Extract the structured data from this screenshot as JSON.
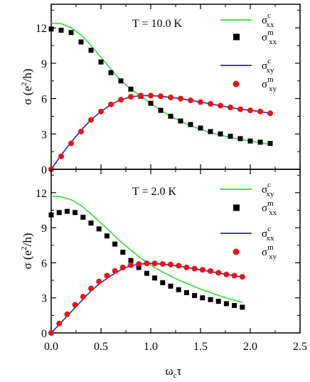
{
  "chart_data": [
    {
      "type": "line",
      "annotation": "T = 10.0 K",
      "xlabel": "",
      "ylabel": "σ (e²/h)",
      "ylabel_main": "σ (e",
      "ylabel_sup": "2",
      "ylabel_end": "/h)",
      "xlim": [
        0,
        2.5
      ],
      "ylim": [
        0,
        14
      ],
      "yticks": [
        0,
        3,
        6,
        9,
        12
      ],
      "xticks": [
        0.0,
        0.5,
        1.0,
        1.5,
        2.0,
        2.5
      ],
      "legend_position": "top-right",
      "series": [
        {
          "name": "σxx^c",
          "name_base": "σ",
          "name_sup": "c",
          "name_sub": "xx",
          "kind": "line",
          "color": "#33dd33",
          "x": [
            0.0,
            0.1,
            0.2,
            0.3,
            0.4,
            0.5,
            0.6,
            0.7,
            0.8,
            0.9,
            1.0,
            1.1,
            1.2,
            1.3,
            1.4,
            1.5,
            1.6,
            1.7,
            1.8,
            1.9,
            2.0,
            2.1,
            2.2
          ],
          "y": [
            12.4,
            12.35,
            12.0,
            11.4,
            10.5,
            9.5,
            8.5,
            7.5,
            6.8,
            6.2,
            5.6,
            5.0,
            4.5,
            4.1,
            3.7,
            3.4,
            3.1,
            2.9,
            2.7,
            2.55,
            2.4,
            2.25,
            2.1
          ]
        },
        {
          "name": "σxx^m",
          "name_base": "σ",
          "name_sup": "m",
          "name_sub": "xx",
          "kind": "square",
          "color": "#000000",
          "x": [
            0.0,
            0.1,
            0.2,
            0.3,
            0.4,
            0.5,
            0.6,
            0.7,
            0.8,
            0.9,
            1.0,
            1.1,
            1.2,
            1.3,
            1.4,
            1.5,
            1.6,
            1.7,
            1.8,
            1.9,
            2.0,
            2.1,
            2.2
          ],
          "y": [
            11.9,
            11.8,
            11.6,
            10.8,
            10.1,
            9.1,
            8.2,
            7.5,
            6.8,
            6.2,
            5.6,
            5.0,
            4.5,
            4.1,
            3.8,
            3.5,
            3.2,
            3.0,
            2.8,
            2.6,
            2.4,
            2.3,
            2.2
          ]
        },
        {
          "name": "σxy^c",
          "name_base": "σ",
          "name_sup": "c",
          "name_sub": "xy",
          "kind": "line",
          "color": "#2222cc",
          "x": [
            0.0,
            0.1,
            0.2,
            0.3,
            0.4,
            0.5,
            0.6,
            0.7,
            0.8,
            0.9,
            1.0,
            1.1,
            1.2,
            1.3,
            1.4,
            1.5,
            1.6,
            1.7,
            1.8,
            1.9,
            2.0,
            2.1,
            2.2
          ],
          "y": [
            0.0,
            1.2,
            2.3,
            3.3,
            4.2,
            4.9,
            5.5,
            5.9,
            6.15,
            6.25,
            6.25,
            6.2,
            6.1,
            6.0,
            5.85,
            5.7,
            5.55,
            5.4,
            5.25,
            5.1,
            5.0,
            4.9,
            4.75
          ]
        },
        {
          "name": "σxy^m",
          "name_base": "σ",
          "name_sup": "m",
          "name_sub": "xy",
          "kind": "circle",
          "color": "#ee1111",
          "x": [
            0.0,
            0.1,
            0.2,
            0.3,
            0.4,
            0.5,
            0.6,
            0.7,
            0.8,
            0.9,
            1.0,
            1.1,
            1.2,
            1.3,
            1.4,
            1.5,
            1.6,
            1.7,
            1.8,
            1.9,
            2.0,
            2.1,
            2.2
          ],
          "y": [
            0.0,
            1.1,
            2.2,
            3.2,
            4.2,
            4.9,
            5.5,
            5.9,
            6.15,
            6.25,
            6.25,
            6.2,
            6.1,
            6.0,
            5.85,
            5.7,
            5.55,
            5.4,
            5.25,
            5.1,
            5.0,
            4.9,
            4.75
          ]
        }
      ]
    },
    {
      "type": "line",
      "annotation": "T = 2.0 K",
      "xlabel": "ωcτ",
      "xlabel_base": "ω",
      "xlabel_sub": "c",
      "xlabel_end": "τ",
      "ylabel": "σ (e²/h)",
      "ylabel_main": "σ (e",
      "ylabel_sup": "2",
      "ylabel_end": "/h)",
      "xlim": [
        0,
        2.5
      ],
      "ylim": [
        0,
        14
      ],
      "yticks": [
        0,
        3,
        6,
        9,
        12
      ],
      "xticks": [
        0.0,
        0.5,
        1.0,
        1.5,
        2.0,
        2.5
      ],
      "xtick_labels": [
        "0.0",
        "0.5",
        "1.0",
        "1.5",
        "2.0",
        "2.5"
      ],
      "legend_position": "top-right",
      "series": [
        {
          "name": "σxy^c",
          "name_base": "σ",
          "name_sup": "c",
          "name_sub": "xy",
          "kind": "line",
          "color": "#33dd33",
          "x": [
            0.0,
            0.1,
            0.2,
            0.3,
            0.4,
            0.5,
            0.6,
            0.7,
            0.8,
            0.9,
            1.0,
            1.1,
            1.2,
            1.3,
            1.4,
            1.5,
            1.6,
            1.7,
            1.8,
            1.9,
            1.92
          ],
          "y": [
            11.7,
            11.65,
            11.4,
            10.9,
            10.2,
            9.4,
            8.6,
            7.8,
            7.1,
            6.4,
            5.8,
            5.3,
            4.85,
            4.45,
            4.1,
            3.75,
            3.45,
            3.15,
            2.9,
            2.65,
            2.6
          ]
        },
        {
          "name": "σxx^m",
          "name_base": "σ",
          "name_sup": "m",
          "name_sub": "xx",
          "kind": "square",
          "color": "#000000",
          "x": [
            0.0,
            0.08,
            0.16,
            0.24,
            0.32,
            0.4,
            0.48,
            0.56,
            0.64,
            0.72,
            0.8,
            0.88,
            0.96,
            1.04,
            1.12,
            1.2,
            1.28,
            1.36,
            1.44,
            1.52,
            1.6,
            1.68,
            1.76,
            1.84,
            1.92
          ],
          "y": [
            10.1,
            10.3,
            10.4,
            10.3,
            9.9,
            9.4,
            8.9,
            8.3,
            7.6,
            6.9,
            6.2,
            5.6,
            5.1,
            4.7,
            4.3,
            4.0,
            3.7,
            3.45,
            3.2,
            3.0,
            2.85,
            2.7,
            2.5,
            2.35,
            2.2
          ]
        },
        {
          "name": "σxx^c",
          "name_base": "σ",
          "name_sup": "c",
          "name_sub": "xx",
          "kind": "line",
          "color": "#2222cc",
          "x": [
            0.0,
            0.1,
            0.2,
            0.3,
            0.4,
            0.5,
            0.6,
            0.7,
            0.8,
            0.9,
            1.0,
            1.1,
            1.2,
            1.3,
            1.4,
            1.5,
            1.6,
            1.7,
            1.8,
            1.9,
            1.92
          ],
          "y": [
            0.0,
            0.9,
            1.8,
            2.7,
            3.6,
            4.3,
            4.9,
            5.4,
            5.75,
            5.9,
            5.95,
            5.9,
            5.8,
            5.7,
            5.55,
            5.4,
            5.25,
            5.1,
            4.95,
            4.8,
            4.78
          ]
        },
        {
          "name": "σxy^m",
          "name_base": "σ",
          "name_sup": "m",
          "name_sub": "xy",
          "kind": "circle",
          "color": "#ee1111",
          "x": [
            0.0,
            0.08,
            0.16,
            0.24,
            0.32,
            0.4,
            0.48,
            0.56,
            0.64,
            0.72,
            0.8,
            0.88,
            0.96,
            1.04,
            1.12,
            1.2,
            1.28,
            1.36,
            1.44,
            1.52,
            1.6,
            1.68,
            1.76,
            1.84,
            1.92
          ],
          "y": [
            0.0,
            0.8,
            1.6,
            2.4,
            3.1,
            3.8,
            4.4,
            4.9,
            5.3,
            5.6,
            5.8,
            5.9,
            5.95,
            5.95,
            5.9,
            5.85,
            5.75,
            5.6,
            5.5,
            5.4,
            5.3,
            5.15,
            5.0,
            4.9,
            4.8
          ]
        }
      ]
    }
  ]
}
